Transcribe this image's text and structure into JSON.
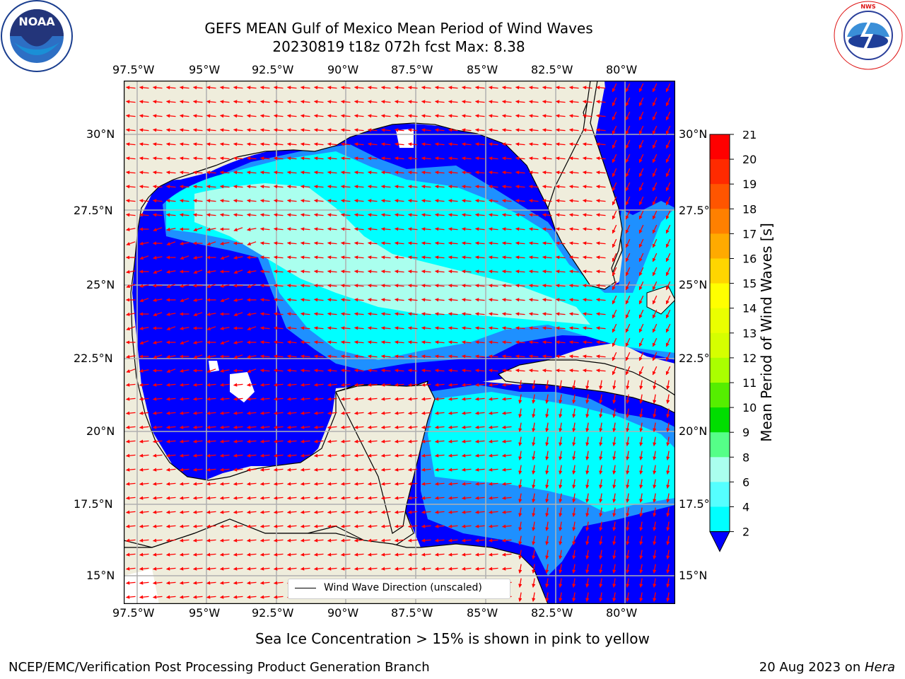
{
  "header": {
    "title_line1": "GEFS MEAN Gulf of Mexico Mean Period of Wind Waves",
    "title_line2": "20230819 t18z 072h fcst   Max: 8.38"
  },
  "logos": {
    "left": "NOAA",
    "left_ring_text": "NATIONAL OCEANIC AND ATMOSPHERIC ADMINISTRATION · U.S. DEPARTMENT OF COMMERCE",
    "right_ring_text": "NATIONAL WEATHER SERVICE"
  },
  "map": {
    "lon_labels": [
      "97.5°W",
      "95°W",
      "92.5°W",
      "90°W",
      "87.5°W",
      "85°W",
      "82.5°W",
      "80°W"
    ],
    "lat_labels_left": [
      "30°N",
      "27.5°N",
      "25°N",
      "22.5°N",
      "20°N",
      "17.5°N",
      "15°N"
    ],
    "lat_labels_right": [
      "30°N",
      "27.5°N",
      "25°N",
      "22.5°N",
      "20°N",
      "17.5°N",
      "15°N"
    ],
    "legend_label": "Wind Wave Direction (unscaled)",
    "land_color": "#efeddc",
    "vector_color": "#ff0000"
  },
  "colorbar": {
    "label": "Mean Period of Wind Waves [s]",
    "ticks": [
      "21",
      "20",
      "19",
      "18",
      "17",
      "16",
      "15",
      "14",
      "13",
      "12",
      "11",
      "10",
      "9",
      "8",
      "6",
      "4",
      "2"
    ],
    "colors_top_to_bottom": [
      "#ff0000",
      "#ff2a00",
      "#ff5500",
      "#ff8000",
      "#ffaa00",
      "#ffd500",
      "#ffff00",
      "#eaff00",
      "#d5ff00",
      "#aaff00",
      "#55ee00",
      "#00dd00",
      "#55ff88",
      "#aaffee",
      "#55ffff",
      "#00ffff",
      "#00eeff",
      "#1e90ff",
      "#0000ff"
    ]
  },
  "footer": {
    "sea_ice_note": "Sea Ice Concentration > 15% is shown in pink to yellow",
    "credit": "NCEP/EMC/Verification Post Processing Product Generation Branch",
    "date_prefix": "20 Aug 2023 on ",
    "host": "Hera"
  }
}
